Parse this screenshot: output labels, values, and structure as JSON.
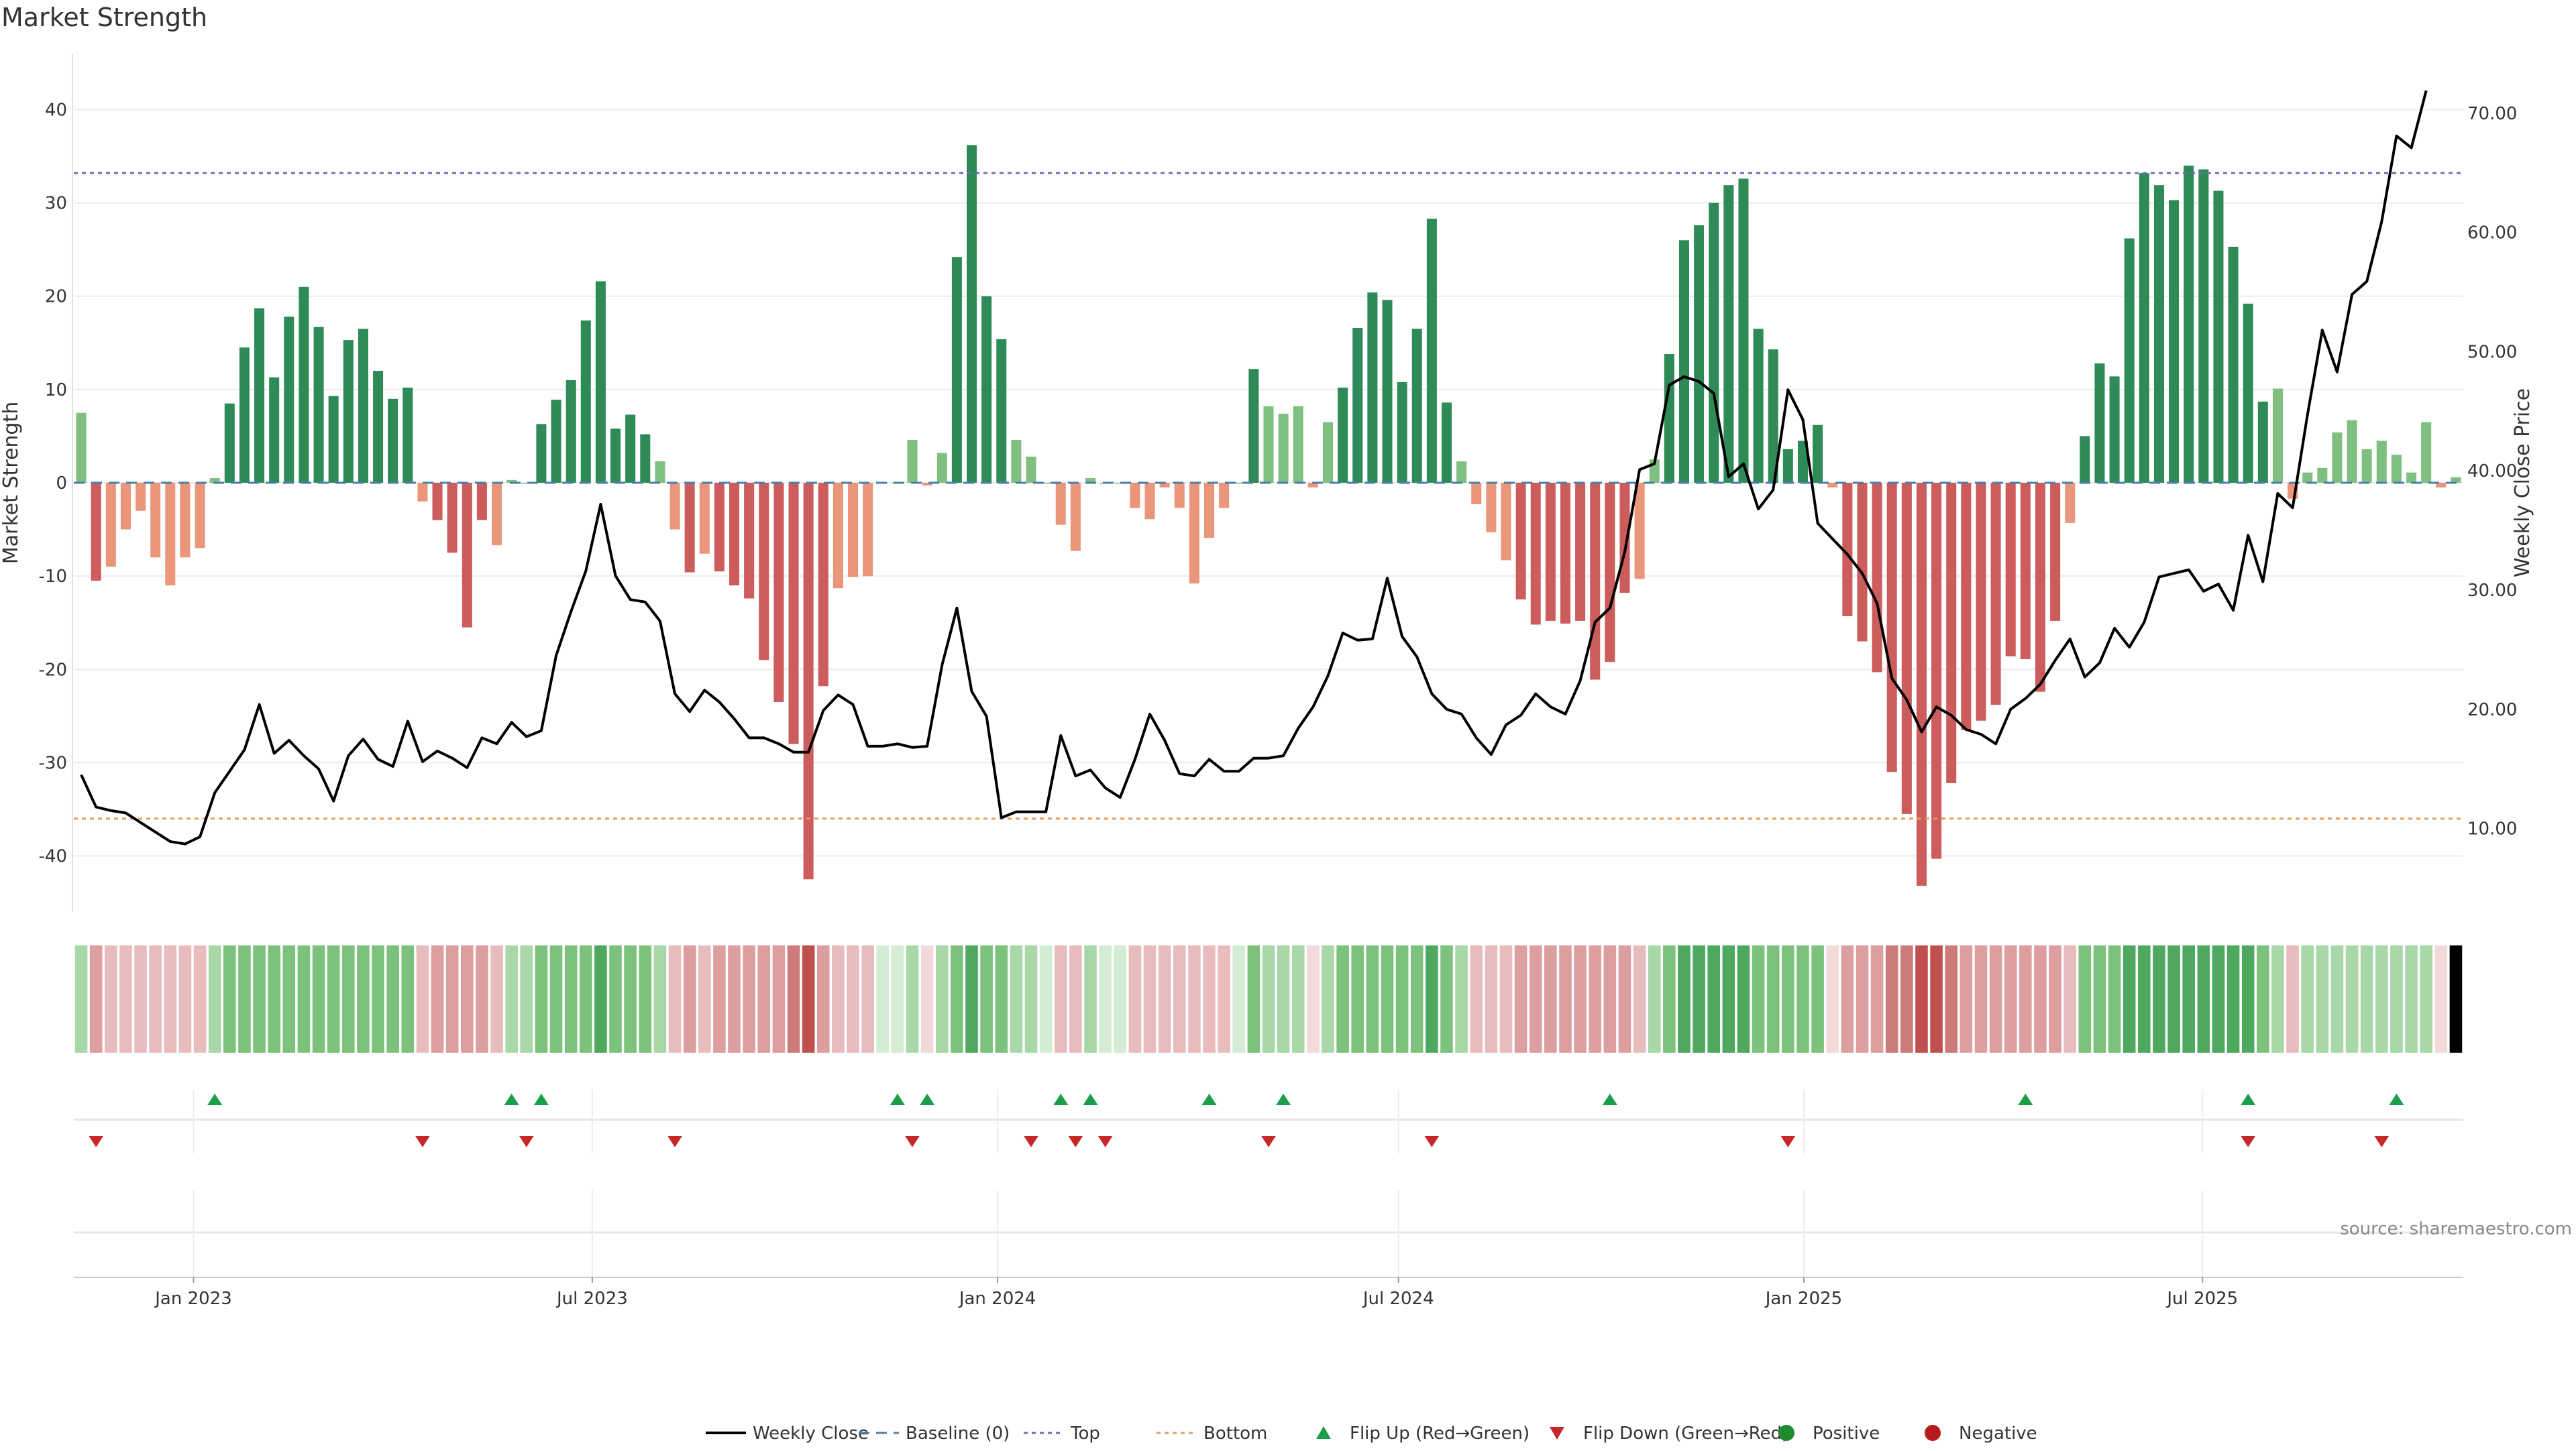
{
  "title": "Market Strength",
  "source": "source: sharemaestro.com",
  "colors": {
    "strong_green": "#2e8b57",
    "light_green": "#7fbf7f",
    "strong_red": "#cd5c5c",
    "light_red": "#e9967a",
    "line": "#000000",
    "top": "#7b68b0",
    "bottom": "#e0a060",
    "baseline": "#4a7fa8",
    "flip_up": "#1a9e4a",
    "flip_down": "#c62828",
    "positive": "#1f8a2f",
    "negative": "#b71c1c"
  },
  "chart_data": {
    "type": "bar",
    "title": "Market Strength",
    "ylabel": "Market Strength",
    "y2label": "Weekly Close Price",
    "ylim": [
      -46,
      46
    ],
    "y2lim": [
      3,
      75
    ],
    "yticks": [
      40,
      30,
      20,
      10,
      0,
      -10,
      -20,
      -30,
      -40
    ],
    "y2ticks": [
      "70.00",
      "60.00",
      "50.00",
      "40.00",
      "30.00",
      "20.00",
      "10.00"
    ],
    "top_level": 33.2,
    "bottom_level": -36.0,
    "x_start": "2022-11-11",
    "x_end": "2025-10-24",
    "xticks": [
      {
        "date": "2023-01-01",
        "label": "Jan 2023"
      },
      {
        "date": "2023-07-01",
        "label": "Jul 2023"
      },
      {
        "date": "2024-01-01",
        "label": "Jan 2024"
      },
      {
        "date": "2024-07-01",
        "label": "Jul 2024"
      },
      {
        "date": "2025-01-01",
        "label": "Jan 2025"
      },
      {
        "date": "2025-07-01",
        "label": "Jul 2025"
      }
    ],
    "strength": [
      7.5,
      -10.5,
      -9,
      -5,
      -3,
      -8,
      -11,
      -8,
      -7,
      0.5,
      8.5,
      14.5,
      18.7,
      11.3,
      17.8,
      21,
      16.7,
      9.3,
      15.3,
      16.5,
      12,
      9,
      10.2,
      -2,
      -4,
      -7.5,
      -15.5,
      -4,
      -6.7,
      0.3,
      0,
      6.3,
      8.9,
      11,
      17.4,
      21.6,
      5.8,
      7.3,
      5.2,
      2.3,
      -5,
      -9.6,
      -7.6,
      -9.5,
      -11,
      -12.4,
      -19,
      -23.5,
      -28,
      -42.5,
      -21.8,
      -11.3,
      -10.1,
      -10,
      0,
      0,
      4.6,
      -0.3,
      3.2,
      24.2,
      36.2,
      20,
      15.4,
      4.6,
      2.8,
      0,
      -4.5,
      -7.3,
      0.5,
      0,
      0,
      -2.7,
      -3.9,
      -0.5,
      -2.7,
      -10.8,
      -5.9,
      -2.7,
      0,
      12.2,
      8.2,
      7.4,
      8.2,
      -0.5,
      6.5,
      10.2,
      16.6,
      20.4,
      19.6,
      10.8,
      16.5,
      28.3,
      8.6,
      2.3,
      -2.3,
      -5.3,
      -8.3,
      -12.5,
      -15.2,
      -14.8,
      -15.1,
      -14.8,
      -21.1,
      -19.2,
      -11.8,
      -10.3,
      2.5,
      13.8,
      26,
      27.6,
      30,
      31.9,
      32.6,
      16.5,
      14.3,
      3.6,
      4.5,
      6.2,
      -0.5,
      -14.3,
      -17,
      -20.3,
      -31,
      -35.5,
      -43.2,
      -40.3,
      -32.2,
      -26.5,
      -25.5,
      -23.8,
      -18.6,
      -18.9,
      -22.4,
      -14.8,
      -4.3,
      5,
      12.8,
      11.4,
      26.2,
      33.2,
      31.9,
      30.3,
      34,
      33.6,
      31.3,
      25.3,
      19.2,
      8.7,
      10.1,
      -1.7,
      1.1,
      1.6,
      5.4,
      6.7,
      3.6,
      4.5,
      3,
      1.1,
      6.5,
      -0.5,
      0.6
    ],
    "intensity": [
      1,
      2,
      1,
      1,
      1,
      1,
      1,
      1,
      1,
      1,
      2,
      2,
      2,
      2,
      2,
      2,
      2,
      2,
      2,
      2,
      2,
      2,
      2,
      1,
      2,
      2,
      2,
      2,
      1,
      1,
      1,
      2,
      2,
      2,
      2,
      3,
      2,
      2,
      2,
      1,
      1,
      2,
      1,
      2,
      2,
      2,
      2,
      2,
      3,
      4,
      2,
      1,
      1,
      1,
      0,
      0,
      1,
      0,
      1,
      2,
      3,
      2,
      2,
      1,
      1,
      0,
      1,
      1,
      1,
      0,
      0,
      1,
      1,
      1,
      1,
      1,
      1,
      1,
      0,
      2,
      1,
      1,
      1,
      0,
      1,
      2,
      2,
      2,
      2,
      2,
      2,
      3,
      2,
      1,
      1,
      1,
      1,
      2,
      2,
      2,
      2,
      2,
      2,
      2,
      2,
      1,
      1,
      2,
      3,
      3,
      3,
      3,
      3,
      2,
      2,
      2,
      2,
      2,
      0,
      2,
      2,
      2,
      3,
      3,
      4,
      4,
      3,
      2,
      2,
      2,
      2,
      2,
      2,
      2,
      1,
      2,
      2,
      2,
      3,
      3,
      3,
      3,
      3,
      3,
      3,
      3,
      3,
      2,
      1,
      1,
      1,
      1,
      1,
      1,
      1,
      1,
      1,
      1,
      1,
      0
    ],
    "close": [
      14.5,
      11.8,
      11.5,
      11.3,
      10.5,
      9.7,
      8.9,
      8.7,
      9.3,
      13,
      14.8,
      16.6,
      20.4,
      16.3,
      17.4,
      16.1,
      15,
      12.3,
      16.1,
      17.5,
      15.8,
      15.2,
      19,
      15.6,
      16.5,
      15.9,
      15.1,
      17.6,
      17.1,
      18.9,
      17.7,
      18.2,
      24.5,
      28.2,
      31.6,
      37.2,
      31.2,
      29.2,
      29,
      27.4,
      21.3,
      19.8,
      21.6,
      20.6,
      19.2,
      17.6,
      17.6,
      17.1,
      16.4,
      16.4,
      19.9,
      21.2,
      20.4,
      16.9,
      16.9,
      17.1,
      16.8,
      16.9,
      23.7,
      28.5,
      21.5,
      19.4,
      10.9,
      11.4,
      11.4,
      11.4,
      17.8,
      14.4,
      14.9,
      13.4,
      12.6,
      15.8,
      19.6,
      17.4,
      14.6,
      14.4,
      15.8,
      14.8,
      14.8,
      15.9,
      15.9,
      16.1,
      18.4,
      20.2,
      22.8,
      26.4,
      25.8,
      25.9,
      31,
      26.1,
      24.4,
      21.3,
      20,
      19.6,
      17.6,
      16.2,
      18.7,
      19.5,
      21.3,
      20.2,
      19.6,
      22.4,
      27.3,
      28.5,
      33.2,
      40.1,
      40.6,
      47.2,
      47.9,
      47.5,
      46.5,
      39.5,
      40.6,
      36.8,
      38.4,
      46.8,
      44.3,
      35.6,
      34.3,
      33,
      31.4,
      28.9,
      22.6,
      20.8,
      18.1,
      20.2,
      19.5,
      18.3,
      17.9,
      17.1,
      20,
      20.9,
      22.1,
      24.1,
      25.9,
      22.7,
      23.9,
      26.8,
      25.2,
      27.3,
      31.1,
      31.4,
      31.7,
      29.9,
      30.5,
      28.3,
      34.6,
      30.7,
      38.1,
      36.9,
      44.7,
      51.8,
      48.3,
      54.8,
      55.9,
      60.9,
      68.1,
      67.1,
      71.9
    ],
    "flip_up": [
      9,
      29,
      31,
      55,
      57,
      66,
      68,
      76,
      81,
      103,
      131,
      146,
      156
    ],
    "flip_down": [
      1,
      23,
      30,
      40,
      56,
      64,
      67,
      69,
      80,
      91,
      115,
      146,
      155
    ],
    "legend": [
      {
        "key": "weekly-close",
        "label": "Weekly Close"
      },
      {
        "key": "baseline",
        "label": "Baseline (0)"
      },
      {
        "key": "top",
        "label": "Top"
      },
      {
        "key": "bottom",
        "label": "Bottom"
      },
      {
        "key": "flip-up",
        "label": "Flip Up (Red→Green)"
      },
      {
        "key": "flip-down",
        "label": "Flip Down (Green→Red)"
      },
      {
        "key": "positive",
        "label": "Positive"
      },
      {
        "key": "negative",
        "label": "Negative"
      }
    ]
  }
}
